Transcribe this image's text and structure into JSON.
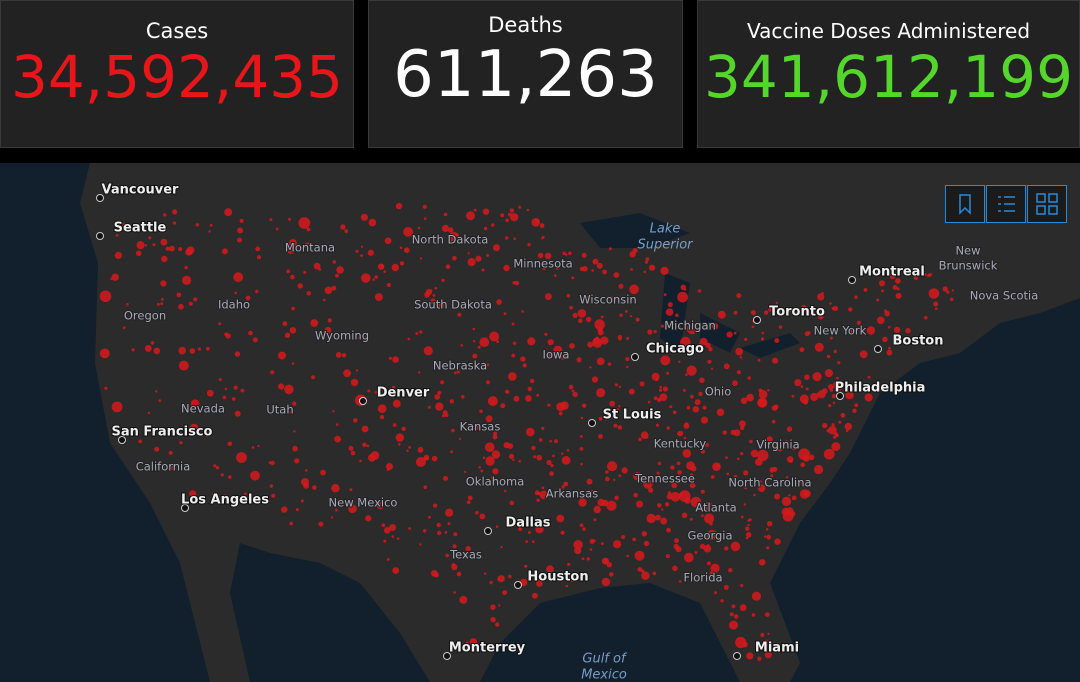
{
  "panels": [
    {
      "title": "Cases",
      "value": "34,592,435"
    },
    {
      "title": "Deaths",
      "value": "611,263"
    },
    {
      "title": "Vaccine Doses Administered",
      "value": "341,612,199"
    }
  ],
  "map": {
    "cities": [
      "Vancouver",
      "Seattle",
      "Montreal",
      "Toronto",
      "Chicago",
      "Boston",
      "Philadelphia",
      "Denver",
      "St Louis",
      "San Francisco",
      "Los Angeles",
      "Dallas",
      "Houston",
      "Monterrey",
      "Miami"
    ],
    "regions": [
      "Montana",
      "North Dakota",
      "Minnesota",
      "Wisconsin",
      "Michigan",
      "New York",
      "Idaho",
      "Oregon",
      "South Dakota",
      "Wyoming",
      "Iowa",
      "Nebraska",
      "Ohio",
      "Nevada",
      "Utah",
      "Kansas",
      "Kentucky",
      "Virginia",
      "California",
      "Oklahoma",
      "Arkansas",
      "Tennessee",
      "North Carolina",
      "New Mexico",
      "Atlanta",
      "Georgia",
      "Texas",
      "Florida",
      "Nova Scotia"
    ],
    "multiline": [
      [
        "New",
        "Brunswick"
      ]
    ],
    "water": [
      [
        "Lake",
        "Superior"
      ],
      [
        "Gulf of",
        "Mexico"
      ]
    ]
  }
}
